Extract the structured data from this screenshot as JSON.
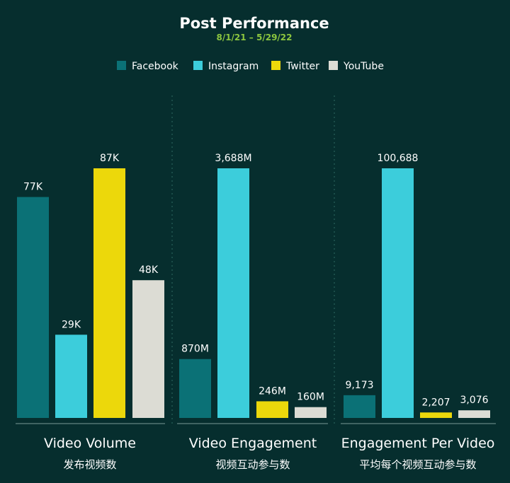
{
  "title": "Post Performance",
  "subtitle": "8/1/21 – 5/29/22",
  "legend": [
    {
      "name": "Facebook",
      "color": "#0b7176"
    },
    {
      "name": "Instagram",
      "color": "#3ccddb"
    },
    {
      "name": "Twitter",
      "color": "#ecd80b"
    },
    {
      "name": "YouTube",
      "color": "#dcdcd4"
    }
  ],
  "chart_data": [
    {
      "type": "bar",
      "title": "Video Volume",
      "subtitle": "发布视频数",
      "categories": [
        "Facebook",
        "Instagram",
        "Twitter",
        "YouTube"
      ],
      "values": [
        77000,
        29000,
        87000,
        48000
      ],
      "labels": [
        "77K",
        "29K",
        "87K",
        "48K"
      ]
    },
    {
      "type": "bar",
      "title": "Video Engagement",
      "subtitle": "视频互动参与数",
      "categories": [
        "Facebook",
        "Instagram",
        "Twitter",
        "YouTube"
      ],
      "values": [
        870,
        3688,
        246,
        160
      ],
      "labels": [
        "870M",
        "3,688M",
        "246M",
        "160M"
      ]
    },
    {
      "type": "bar",
      "title": "Engagement Per Video",
      "subtitle": "平均每个视频互动参与数",
      "categories": [
        "Facebook",
        "Instagram",
        "Twitter",
        "YouTube"
      ],
      "values": [
        9173,
        100688,
        2207,
        3076
      ],
      "labels": [
        "9,173",
        "100,688",
        "2,207",
        "3,076"
      ]
    }
  ]
}
